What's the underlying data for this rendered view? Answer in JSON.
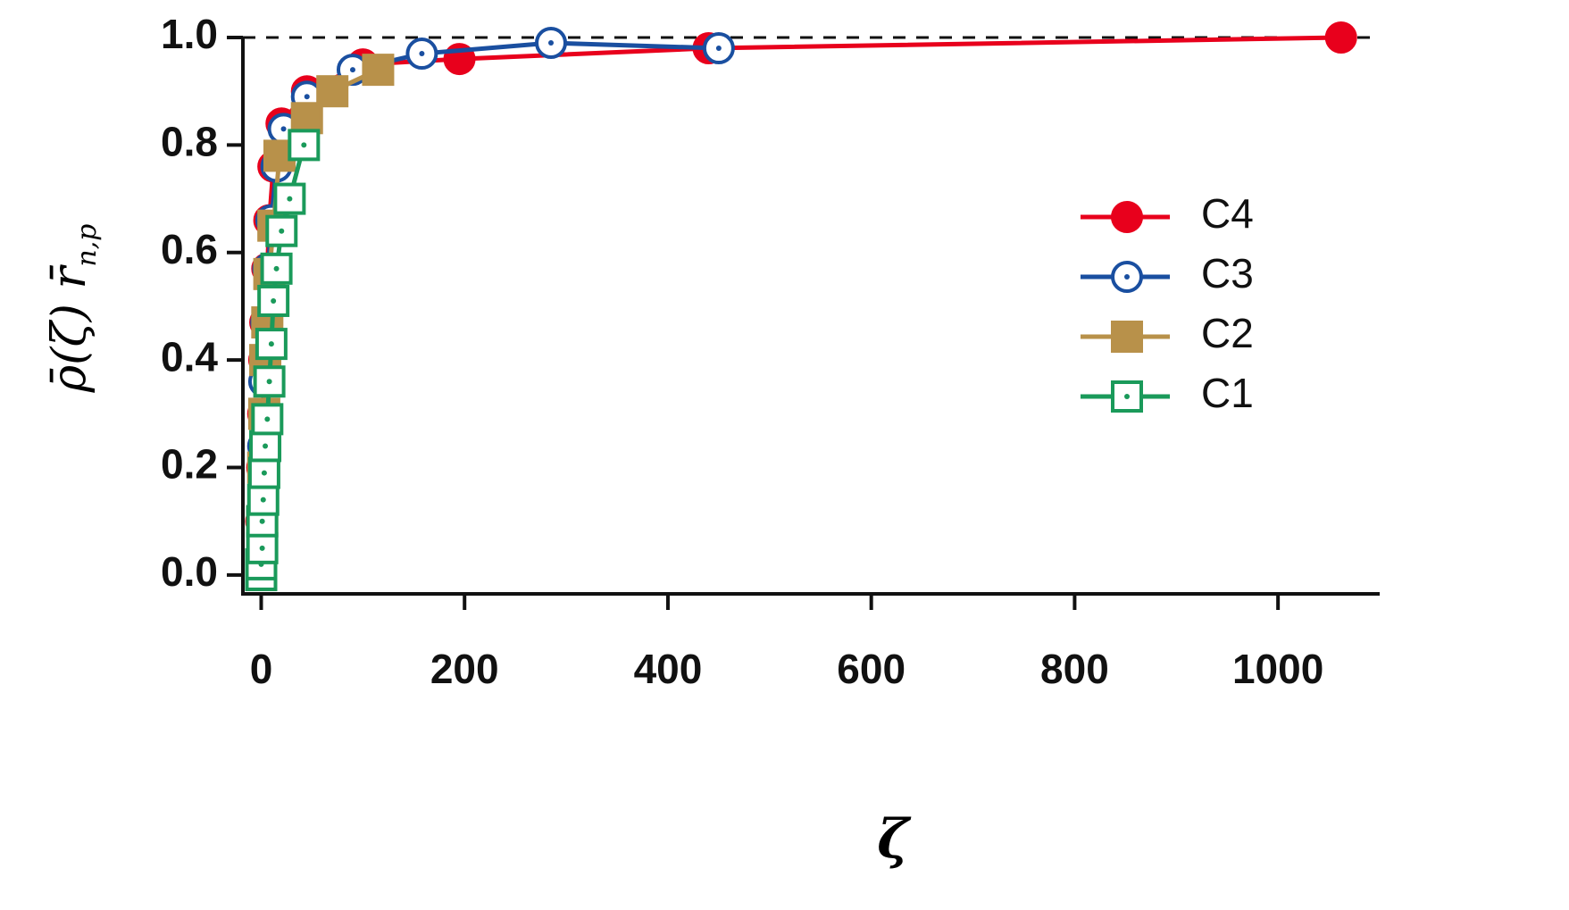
{
  "chart_data": {
    "type": "line",
    "xlabel": "ζ",
    "ylabel": "ρ̄(ζ) r̄",
    "ylabel_subscript": "n,p",
    "xlim": [
      -18,
      1100
    ],
    "ylim": [
      -0.035,
      1.0
    ],
    "xticks": [
      0,
      200,
      400,
      600,
      800,
      1000
    ],
    "yticks": [
      {
        "value": 0,
        "label": "0.0"
      },
      0.2,
      0.4,
      0.6,
      0.8,
      {
        "value": 1,
        "label": "1.0"
      }
    ],
    "reference_line": 1,
    "grid": false,
    "legend": "right",
    "series": [
      {
        "name": "C4",
        "color": "#e8001c",
        "marker": "circle-filled",
        "x": [
          0,
          0,
          1,
          2,
          3,
          4,
          6,
          8,
          12,
          20,
          45,
          100,
          195,
          440,
          1062
        ],
        "values": [
          0.0,
          0.1,
          0.2,
          0.3,
          0.4,
          0.47,
          0.57,
          0.66,
          0.76,
          0.84,
          0.9,
          0.95,
          0.96,
          0.98,
          1.0
        ]
      },
      {
        "name": "C3",
        "color": "#1a4fa0",
        "marker": "circle-dot",
        "x": [
          0,
          1,
          2,
          3,
          5,
          7,
          10,
          15,
          22,
          45,
          90,
          158,
          285,
          450
        ],
        "values": [
          0.0,
          0.12,
          0.24,
          0.36,
          0.47,
          0.57,
          0.66,
          0.76,
          0.83,
          0.89,
          0.94,
          0.97,
          0.99,
          0.98
        ]
      },
      {
        "name": "C2",
        "color": "#b8914a",
        "marker": "square-filled",
        "x": [
          0,
          1,
          2,
          3,
          4,
          6,
          8,
          12,
          18,
          45,
          70,
          115
        ],
        "values": [
          0.0,
          0.1,
          0.2,
          0.3,
          0.4,
          0.47,
          0.56,
          0.65,
          0.78,
          0.85,
          0.9,
          0.94
        ]
      },
      {
        "name": "C1",
        "color": "#1a9a5a",
        "marker": "square-dot",
        "x": [
          0,
          0,
          1,
          1,
          2,
          3,
          4,
          6,
          8,
          10,
          12,
          15,
          20,
          28,
          42
        ],
        "values": [
          0.0,
          0.02,
          0.05,
          0.1,
          0.14,
          0.19,
          0.24,
          0.29,
          0.36,
          0.43,
          0.51,
          0.57,
          0.64,
          0.7,
          0.8
        ]
      }
    ]
  }
}
